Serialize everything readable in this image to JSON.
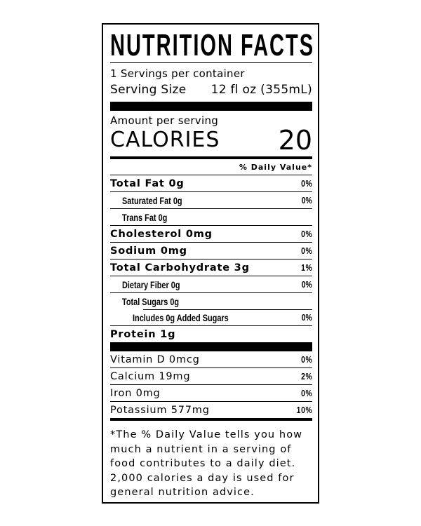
{
  "title": "NUTRITION FACTS",
  "servings_per_container": "1 Servings per container",
  "serving_size_label": "Serving Size",
  "serving_size_value": "12 fl oz (355mL)",
  "amount_per_serving": "Amount per serving",
  "calories_label": "CALORIES",
  "calories_value": "20",
  "daily_value_header": "% Daily Value*",
  "nutrients": [
    {
      "label": "Total Fat 0g",
      "dv": "0%"
    },
    {
      "label": "Saturated Fat 0g",
      "dv": "0%"
    },
    {
      "label": "Trans Fat 0g",
      "dv": ""
    },
    {
      "label": "Cholesterol 0mg",
      "dv": "0%"
    },
    {
      "label": "Sodium 0mg",
      "dv": "0%"
    },
    {
      "label": "Total Carbohydrate 3g",
      "dv": "1%"
    },
    {
      "label": "Dietary Fiber 0g",
      "dv": "0%"
    },
    {
      "label": "Total Sugars 0g",
      "dv": ""
    },
    {
      "label": "Includes 0g Added Sugars",
      "dv": "0%"
    },
    {
      "label": "Protein 1g",
      "dv": ""
    }
  ],
  "vitamins": [
    {
      "label": "Vitamin D 0mcg",
      "dv": "0%"
    },
    {
      "label": "Calcium 19mg",
      "dv": "2%"
    },
    {
      "label": "Iron 0mg",
      "dv": "0%"
    },
    {
      "label": "Potassium 577mg",
      "dv": "10%"
    }
  ],
  "footnote": "*The % Daily Value tells you how much a nutrient in a serving of food contributes to a daily diet. 2,000 calories a day is used for general nutrition advice."
}
